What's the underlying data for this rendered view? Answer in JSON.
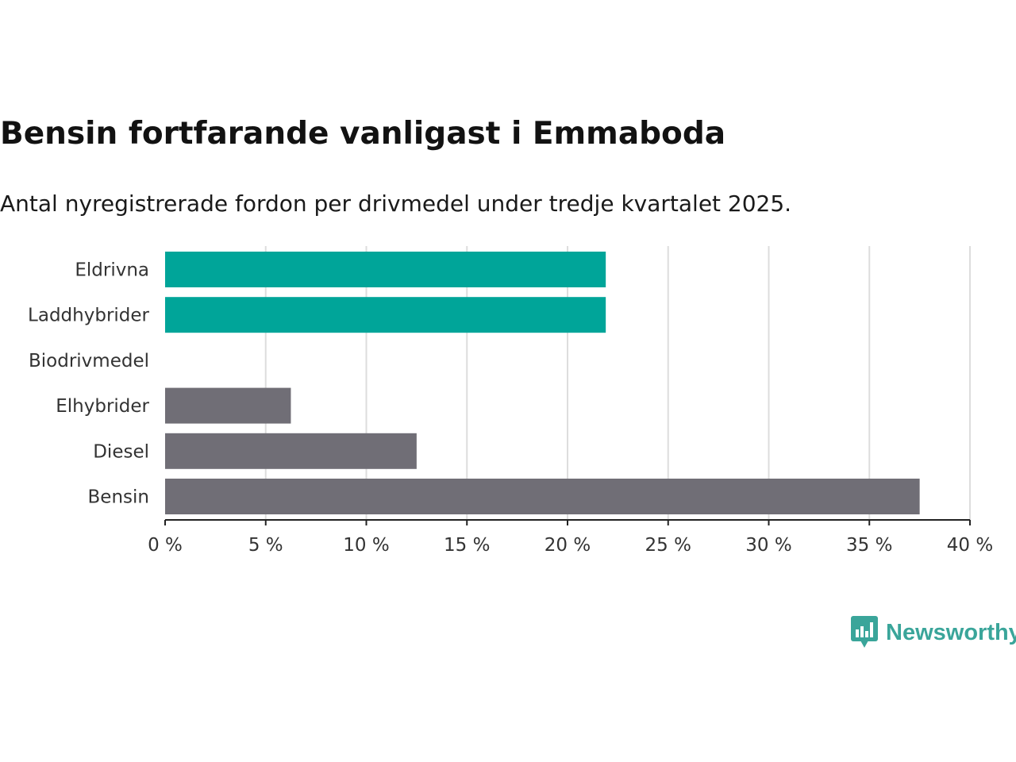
{
  "chart_data": {
    "type": "bar",
    "orientation": "horizontal",
    "title": "Bensin fortfarande vanligast i Emmaboda",
    "subtitle": "Antal nyregistrerade fordon per drivmedel under tredje kvartalet 2025.",
    "categories": [
      "Eldrivna",
      "Laddhybrider",
      "Biodrivmedel",
      "Elhybrider",
      "Diesel",
      "Bensin"
    ],
    "values": [
      21.9,
      21.9,
      0,
      6.25,
      12.5,
      37.5
    ],
    "highlight": [
      true,
      true,
      true,
      false,
      false,
      false
    ],
    "unit": "%",
    "xlim": [
      0,
      40
    ],
    "ticks": [
      0,
      5,
      10,
      15,
      20,
      25,
      30,
      35,
      40
    ],
    "tick_labels": [
      "0 %",
      "5 %",
      "10 %",
      "15 %",
      "20 %",
      "25 %",
      "30 %",
      "35 %",
      "40 %"
    ],
    "grid": true,
    "colors": {
      "highlight": "#00a599",
      "default": "#706e76",
      "grid": "#dddddd",
      "axis": "#222222"
    }
  },
  "brand": {
    "name": "Newsworthy",
    "logo_icon": "newsworthy-chart-bubble-icon",
    "color": "#3aa59a"
  }
}
